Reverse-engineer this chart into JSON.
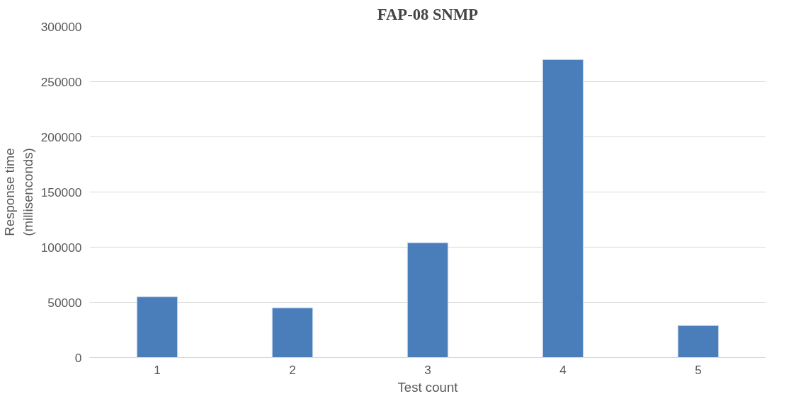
{
  "chart_data": {
    "type": "bar",
    "title": "FAP-08 SNMP",
    "xlabel": "Test count",
    "ylabel": "Response time\n(millisenconds)",
    "categories": [
      "1",
      "2",
      "3",
      "4",
      "5"
    ],
    "values": [
      55000,
      45000,
      104000,
      270000,
      29000
    ],
    "color": "#4a7ebb",
    "ylim": [
      0,
      300000
    ],
    "yticks": [
      0,
      50000,
      100000,
      150000,
      200000,
      250000,
      300000
    ],
    "grid": "y"
  }
}
